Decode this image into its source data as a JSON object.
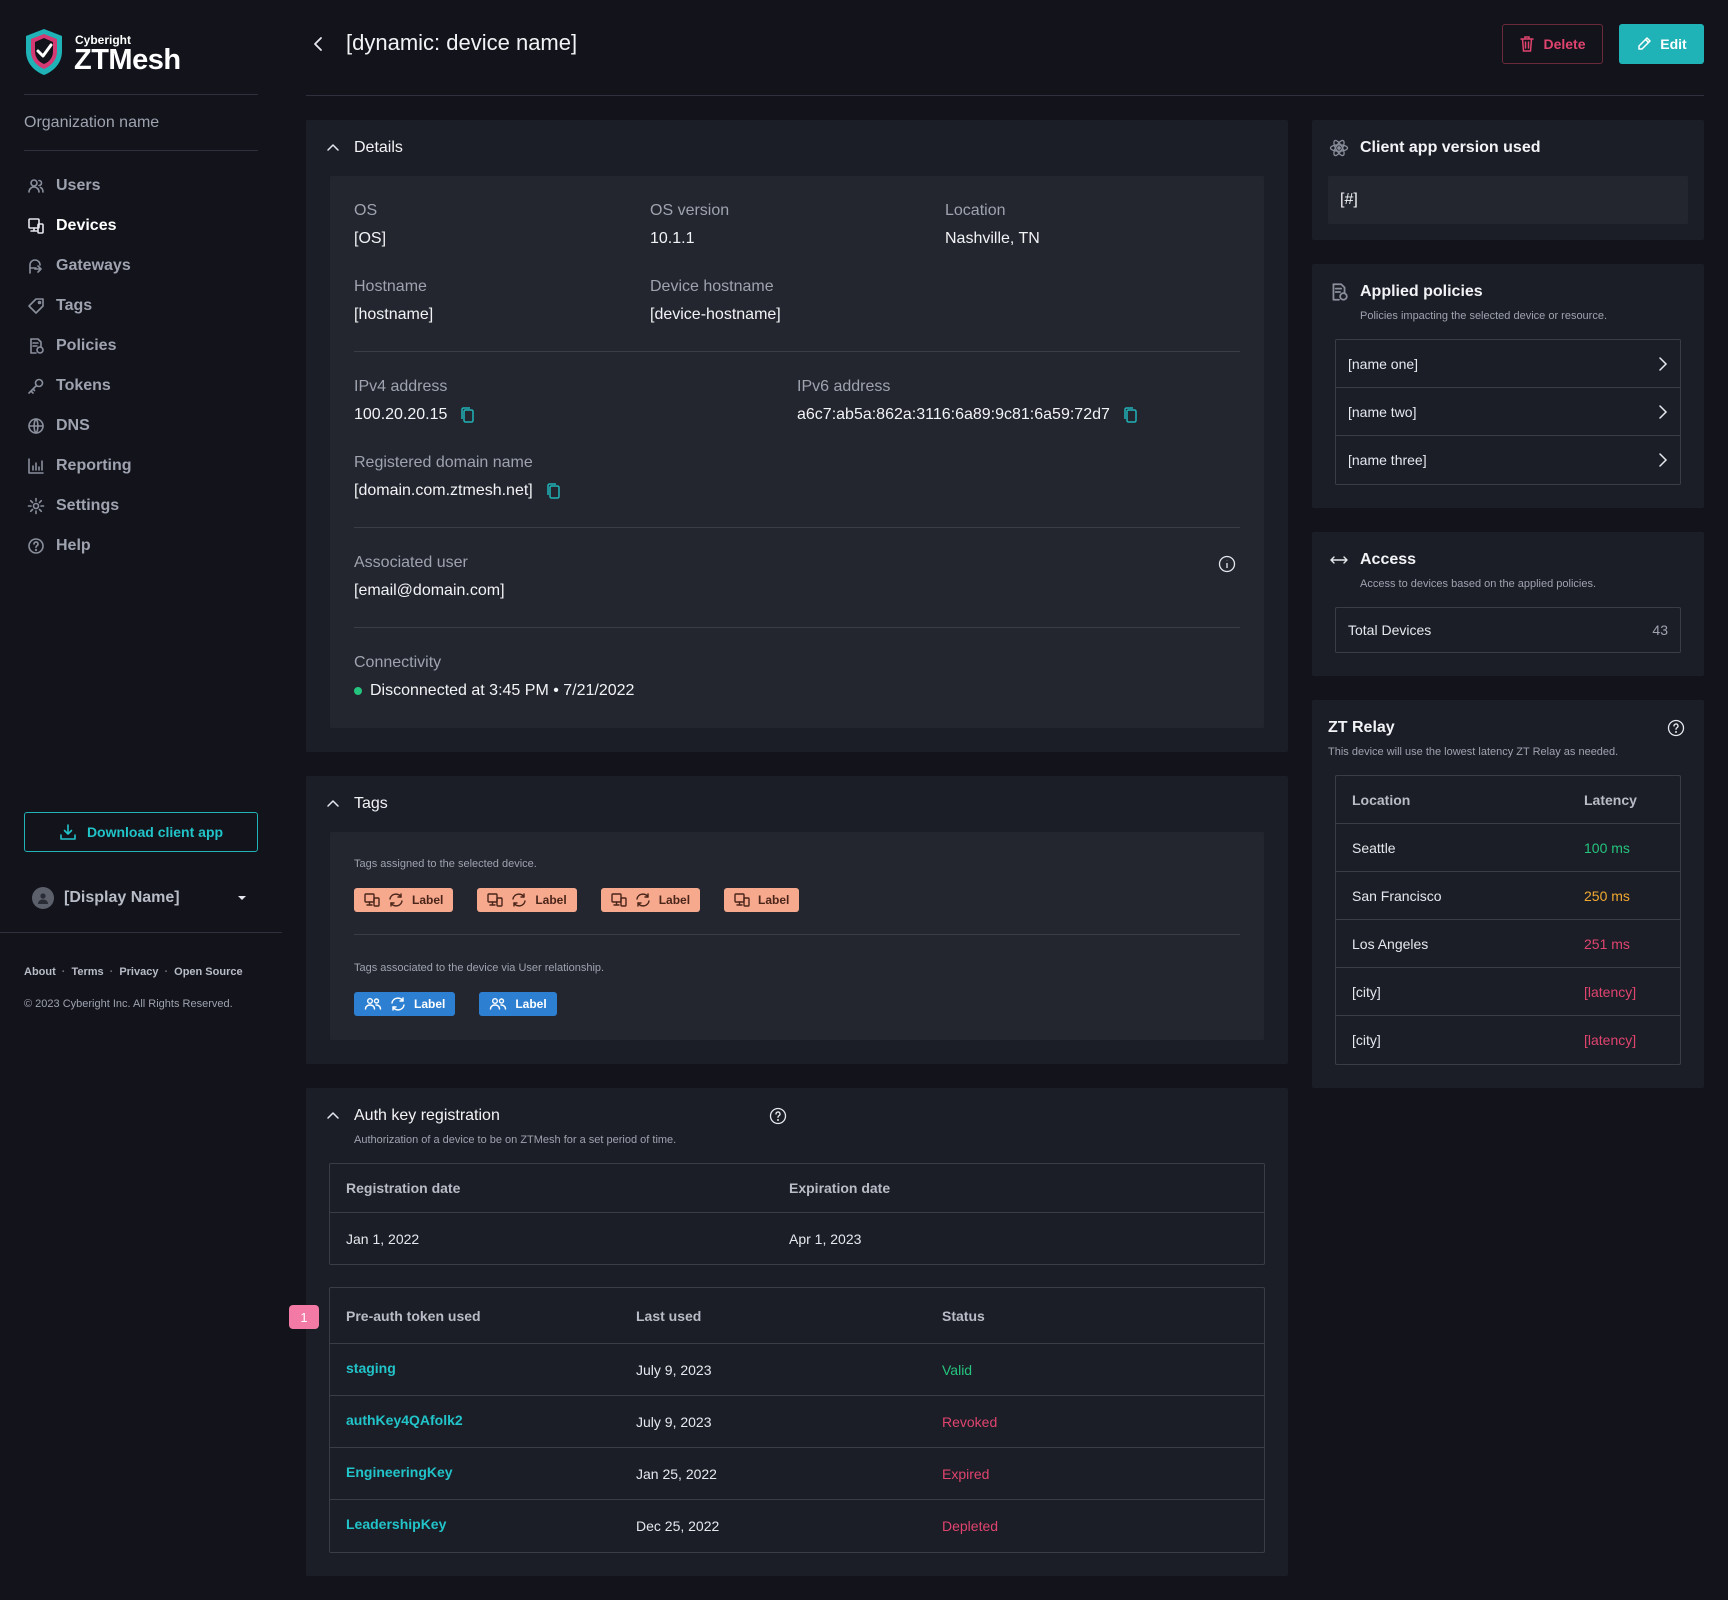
{
  "brand": {
    "company": "Cyberight",
    "product": "ZTMesh"
  },
  "sidebar": {
    "org_name": "Organization name",
    "nav": [
      {
        "label": "Users",
        "icon": "users-icon"
      },
      {
        "label": "Devices",
        "icon": "devices-icon",
        "active": true
      },
      {
        "label": "Gateways",
        "icon": "gateways-icon"
      },
      {
        "label": "Tags",
        "icon": "tag-icon"
      },
      {
        "label": "Policies",
        "icon": "policies-icon"
      },
      {
        "label": "Tokens",
        "icon": "key-icon"
      },
      {
        "label": "DNS",
        "icon": "globe-icon"
      },
      {
        "label": "Reporting",
        "icon": "chart-icon"
      },
      {
        "label": "Settings",
        "icon": "gear-icon"
      },
      {
        "label": "Help",
        "icon": "help-icon"
      }
    ],
    "download_label": "Download client app",
    "display_name": "[Display Name]",
    "footer_links": [
      "About",
      "Terms",
      "Privacy",
      "Open Source"
    ],
    "copyright": "© 2023 Cyberight Inc. All Rights Reserved."
  },
  "header": {
    "title": "[dynamic: device name]",
    "delete_label": "Delete",
    "edit_label": "Edit"
  },
  "details": {
    "title": "Details",
    "os_label": "OS",
    "os": "[OS]",
    "os_version_label": "OS version",
    "os_version": "10.1.1",
    "location_label": "Location",
    "location": "Nashville, TN",
    "hostname_label": "Hostname",
    "hostname": "[hostname]",
    "device_hostname_label": "Device hostname",
    "device_hostname": "[device-hostname]",
    "ipv4_label": "IPv4 address",
    "ipv4": "100.20.20.15",
    "ipv6_label": "IPv6 address",
    "ipv6": "a6c7:ab5a:862a:3116:6a89:9c81:6a59:72d7",
    "domain_label": "Registered domain name",
    "domain": "[domain.com.ztmesh.net]",
    "user_label": "Associated user",
    "user": "[email@domain.com]",
    "connectivity_label": "Connectivity",
    "connectivity": "Disconnected at 3:45 PM • 7/21/2022"
  },
  "tags": {
    "title": "Tags",
    "device_desc": "Tags assigned to the selected device.",
    "device_tags": [
      {
        "label": "Label",
        "sync": true
      },
      {
        "label": "Label",
        "sync": true
      },
      {
        "label": "Label",
        "sync": true
      },
      {
        "label": "Label",
        "sync": false
      }
    ],
    "user_desc": "Tags associated to the device via User relationship.",
    "user_tags": [
      {
        "label": "Label",
        "sync": true
      },
      {
        "label": "Label",
        "sync": false
      }
    ]
  },
  "auth": {
    "title": "Auth key registration",
    "desc": "Authorization of a device to be on ZTMesh for a set period of time.",
    "reg_label": "Registration date",
    "exp_label": "Expiration date",
    "reg_date": "Jan 1, 2022",
    "exp_date": "Apr 1, 2023",
    "badge": "1",
    "token_headers": [
      "Pre-auth token used",
      "Last used",
      "Status"
    ],
    "tokens": [
      {
        "name": "staging",
        "last": "July 9, 2023",
        "status": "Valid",
        "color": "#24c47e"
      },
      {
        "name": "authKey4QAfolk2",
        "last": "July 9, 2023",
        "status": "Revoked",
        "color": "#e0446e"
      },
      {
        "name": "EngineeringKey",
        "last": "Jan 25, 2022",
        "status": "Expired",
        "color": "#e0446e"
      },
      {
        "name": "LeadershipKey",
        "last": "Dec 25, 2022",
        "status": "Depleted",
        "color": "#e0446e"
      }
    ]
  },
  "client_app": {
    "title": "Client app version used",
    "value": "[#]"
  },
  "policies": {
    "title": "Applied policies",
    "desc": "Policies impacting the selected device or resource.",
    "items": [
      "[name one]",
      "[name two]",
      "[name three]"
    ]
  },
  "access": {
    "title": "Access",
    "desc": "Access to devices based on the applied policies.",
    "total_label": "Total Devices",
    "total": "43"
  },
  "relay": {
    "title": "ZT Relay",
    "desc": "This device will use the lowest latency ZT Relay as needed.",
    "headers": [
      "Location",
      "Latency"
    ],
    "rows": [
      {
        "city": "Seattle",
        "latency": "100 ms",
        "color": "#24c47e"
      },
      {
        "city": "San Francisco",
        "latency": "250 ms",
        "color": "#f0a830"
      },
      {
        "city": "Los Angeles",
        "latency": "251 ms",
        "color": "#e0446e"
      },
      {
        "city": "[city]",
        "latency": "[latency]",
        "color": "#e0446e"
      },
      {
        "city": "[city]",
        "latency": "[latency]",
        "color": "#e0446e"
      }
    ]
  }
}
